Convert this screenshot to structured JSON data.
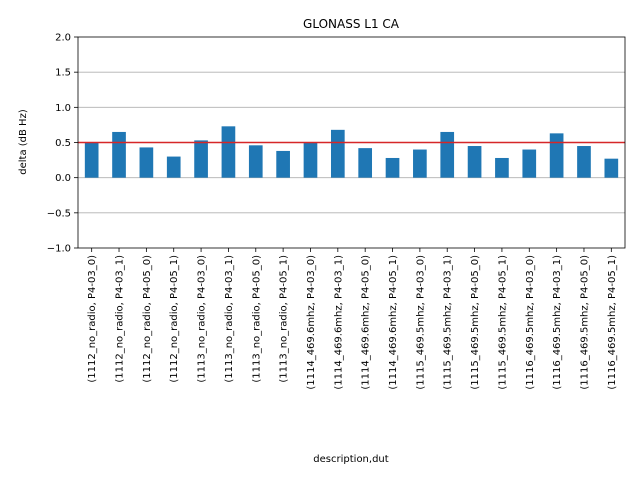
{
  "chart_data": {
    "type": "bar",
    "title": "GLONASS L1 CA",
    "xlabel": "description,dut",
    "ylabel": "delta (dB Hz)",
    "ylim": [
      -1.0,
      2.0
    ],
    "yticks": [
      -1.0,
      -0.5,
      0.0,
      0.5,
      1.0,
      1.5,
      2.0
    ],
    "ytick_labels": [
      "−1.0",
      "−0.5",
      "0.0",
      "0.5",
      "1.0",
      "1.5",
      "2.0"
    ],
    "grid": "y",
    "categories": [
      "(1112_no_radio, P4-03_0)",
      "(1112_no_radio, P4-03_1)",
      "(1112_no_radio, P4-05_0)",
      "(1112_no_radio, P4-05_1)",
      "(1113_no_radio, P4-03_0)",
      "(1113_no_radio, P4-03_1)",
      "(1113_no_radio, P4-05_0)",
      "(1113_no_radio, P4-05_1)",
      "(1114_469.6mhz, P4-03_0)",
      "(1114_469.6mhz, P4-03_1)",
      "(1114_469.6mhz, P4-05_0)",
      "(1114_469.6mhz, P4-05_1)",
      "(1115_469.5mhz, P4-03_0)",
      "(1115_469.5mhz, P4-03_1)",
      "(1115_469.5mhz, P4-05_0)",
      "(1115_469.5mhz, P4-05_1)",
      "(1116_469.5mhz, P4-03_0)",
      "(1116_469.5mhz, P4-03_1)",
      "(1116_469.5mhz, P4-05_0)",
      "(1116_469.5mhz, P4-05_1)"
    ],
    "values": [
      0.5,
      0.65,
      0.43,
      0.3,
      0.53,
      0.73,
      0.46,
      0.38,
      0.5,
      0.68,
      0.42,
      0.28,
      0.4,
      0.65,
      0.45,
      0.28,
      0.4,
      0.63,
      0.45,
      0.27
    ],
    "threshold": 0.5,
    "colors": {
      "bar": "#1f77b4",
      "threshold_line": "#d62728",
      "grid": "#b0b0b0",
      "axes": "#000000"
    }
  }
}
